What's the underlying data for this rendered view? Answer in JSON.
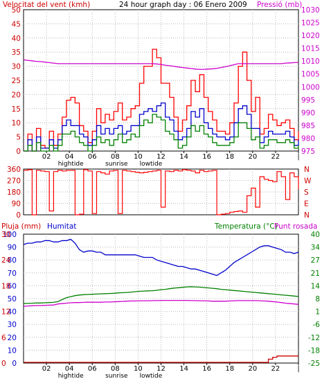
{
  "colors": {
    "wind": "#ff0000",
    "pressure": "#cc00cc",
    "humidity": "#0000cc",
    "temperature": "#008000",
    "dewpoint": "#cc00cc",
    "rain": "#cc0000",
    "direction": "#ff0000",
    "gridline": "#b8b8b8",
    "frame": "#000000"
  },
  "chart_data": [
    {
      "type": "line",
      "id": "wind-pressure",
      "title": "24 hour graph day : 06 Enero 2009",
      "ylabel": "Velocitat del vent (kmh)",
      "y2label": "Pressió (mb)",
      "ylim": [
        0,
        50
      ],
      "y2lim": [
        975,
        1030
      ],
      "yticks": [
        "0",
        "5",
        "10",
        "15",
        "20",
        "25",
        "30",
        "35",
        "40",
        "45",
        "50"
      ],
      "y2ticks": [
        "975",
        "980",
        "985",
        "990",
        "995",
        "1000",
        "1005",
        "1010",
        "1015",
        "1020",
        "1025",
        "1030"
      ],
      "xticks": [
        "02",
        "04",
        "06",
        "08",
        "10",
        "12",
        "14",
        "16",
        "18",
        "20",
        "22",
        "|"
      ],
      "xannotations": [
        {
          "text": "hightide",
          "hour": 4
        },
        {
          "text": "sunrise",
          "hour": 8
        },
        {
          "text": "lowtide",
          "hour": 11
        }
      ],
      "grid": true,
      "series": [
        {
          "name": "gust",
          "values": [
            0,
            6,
            0,
            8,
            2,
            1,
            7,
            2,
            6,
            12,
            18,
            19,
            17,
            9,
            7,
            3,
            7,
            15,
            10,
            13,
            11,
            14,
            17,
            11,
            12,
            15,
            16,
            24,
            30,
            30,
            36,
            33,
            24,
            24,
            19,
            12,
            7,
            11,
            16,
            25,
            21,
            27,
            19,
            14,
            11,
            7,
            7,
            6,
            10,
            17,
            30,
            35,
            25,
            14,
            19,
            6,
            8,
            13,
            11,
            9,
            10,
            11,
            8,
            4,
            7
          ]
        },
        {
          "name": "average",
          "values": [
            0,
            4,
            0,
            5,
            1,
            1,
            4,
            1,
            4,
            9,
            11,
            9,
            9,
            6,
            5,
            2,
            4,
            9,
            6,
            8,
            6,
            8,
            9,
            6,
            7,
            9,
            9,
            13,
            14,
            15,
            14,
            16,
            17,
            12,
            11,
            7,
            4,
            5,
            8,
            14,
            12,
            15,
            10,
            8,
            6,
            5,
            5,
            4,
            5,
            10,
            15,
            16,
            13,
            8,
            8,
            3,
            5,
            7,
            6,
            6,
            6,
            7,
            5,
            2,
            4
          ]
        },
        {
          "name": "minimum",
          "values": [
            0,
            2,
            0,
            3,
            0,
            0,
            2,
            0,
            2,
            6,
            6,
            7,
            5,
            3,
            2,
            0,
            2,
            5,
            3,
            4,
            2,
            4,
            6,
            3,
            4,
            6,
            5,
            9,
            11,
            10,
            13,
            12,
            11,
            7,
            6,
            4,
            1,
            2,
            5,
            9,
            7,
            9,
            6,
            5,
            3,
            2,
            2,
            2,
            3,
            5,
            10,
            10,
            8,
            4,
            5,
            1,
            2,
            4,
            4,
            3,
            3,
            4,
            3,
            1,
            2
          ]
        },
        {
          "name": "pressure",
          "axis": "right",
          "values": [
            1010.5,
            1010.3,
            1010.1,
            1009.9,
            1009.8,
            1009.6,
            1009.4,
            1009.2,
            1009.0,
            1009.0,
            1009.0,
            1009.0,
            1009.0,
            1009.0,
            1009.0,
            1009.0,
            1009.0,
            1009.0,
            1009.0,
            1009.0,
            1009.0,
            1009.0,
            1009.0,
            1009.0,
            1009.0,
            1009.0,
            1009.0,
            1009.0,
            1009.0,
            1009.0,
            1009.0,
            1008.9,
            1008.7,
            1008.4,
            1008.2,
            1008.0,
            1007.7,
            1007.5,
            1007.3,
            1007.1,
            1006.9,
            1006.8,
            1006.8,
            1006.9,
            1007.0,
            1007.2,
            1007.5,
            1007.8,
            1008.2,
            1008.6,
            1009.0,
            1009.0,
            1009.0,
            1009.0,
            1009.0,
            1009.0,
            1009.0,
            1009.0,
            1009.0,
            1009.0,
            1009.0,
            1009.2,
            1009.3,
            1009.4,
            1009.5
          ]
        }
      ]
    },
    {
      "type": "line",
      "id": "direction",
      "ylim": [
        0,
        360
      ],
      "yticks": [
        "0",
        "90",
        "180",
        "270",
        "360"
      ],
      "y2ticks": [
        "N",
        "W",
        "S",
        "E",
        "N"
      ],
      "grid": true,
      "series": [
        {
          "name": "direction",
          "values": [
            350,
            355,
            0,
            350,
            345,
            340,
            30,
            340,
            350,
            345,
            350,
            350,
            0,
            5,
            355,
            345,
            10,
            340,
            330,
            320,
            345,
            350,
            10,
            350,
            345,
            340,
            335,
            330,
            335,
            340,
            345,
            350,
            60,
            345,
            340,
            350,
            345,
            355,
            350,
            345,
            330,
            350,
            340,
            345,
            350,
            0,
            5,
            10,
            20,
            25,
            30,
            20,
            150,
            210,
            60,
            300,
            280,
            270,
            260,
            340,
            300,
            120,
            330,
            300,
            200
          ]
        }
      ]
    },
    {
      "type": "line",
      "id": "rain-humidity-temperature",
      "ylabel": "Pluja (mm)",
      "ylabel2": "Humitat",
      "y2label": "Temperatura (°C)",
      "y2label2": "Punt rosada",
      "ylim": [
        0,
        100
      ],
      "y2lim": [
        -25,
        40
      ],
      "yticks": [
        "0",
        "10",
        "20",
        "30",
        "40",
        "50",
        "60",
        "70",
        "80",
        "90",
        "100"
      ],
      "yticks_rain": [
        "0",
        "6",
        "12",
        "18",
        "24",
        "30"
      ],
      "y2ticks": [
        "-25",
        "-18",
        "-12",
        "-6",
        "1",
        "8",
        "14",
        "21",
        "27",
        "34",
        "40"
      ],
      "xticks": [
        "02",
        "04",
        "06",
        "08",
        "10",
        "12",
        "14",
        "16",
        "18",
        "20",
        "22",
        "|"
      ],
      "xannotations": [
        {
          "text": "hightide",
          "hour": 4
        },
        {
          "text": "sunrise",
          "hour": 8
        },
        {
          "text": "lowtide",
          "hour": 11
        }
      ],
      "grid": true,
      "series": [
        {
          "name": "humidity",
          "values": [
            92,
            93,
            93,
            94,
            94,
            95,
            95,
            94,
            94,
            95,
            95,
            96,
            93,
            88,
            86,
            87,
            87,
            86,
            86,
            84,
            84,
            84,
            84,
            84,
            84,
            84,
            84,
            83,
            82,
            82,
            82,
            80,
            79,
            78,
            77,
            76,
            75,
            75,
            74,
            73,
            73,
            72,
            71,
            70,
            69,
            68,
            70,
            72,
            75,
            78,
            80,
            82,
            84,
            86,
            88,
            90,
            91,
            91,
            90,
            89,
            88,
            86,
            86,
            85,
            86
          ]
        },
        {
          "name": "temperature",
          "axis": "right",
          "values": [
            5.0,
            5.1,
            5.2,
            5.3,
            5.3,
            5.4,
            5.5,
            5.6,
            6.0,
            7.0,
            8.0,
            8.5,
            9.0,
            9.3,
            9.5,
            9.6,
            9.7,
            9.8,
            9.9,
            10.0,
            10.1,
            10.2,
            10.4,
            10.5,
            10.6,
            10.8,
            11.0,
            11.2,
            11.3,
            11.4,
            11.5,
            11.7,
            12.0,
            12.2,
            12.5,
            12.8,
            13.0,
            13.2,
            13.4,
            13.5,
            13.4,
            13.3,
            13.1,
            12.9,
            12.7,
            12.5,
            12.2,
            12.0,
            11.8,
            11.6,
            11.4,
            11.2,
            11.0,
            10.8,
            10.6,
            10.4,
            10.2,
            10.0,
            9.8,
            9.6,
            9.4,
            9.2,
            9.0,
            8.8,
            8.6
          ]
        },
        {
          "name": "dewpoint",
          "axis": "right",
          "values": [
            3.6,
            3.8,
            3.9,
            4.0,
            4.0,
            4.1,
            4.2,
            4.3,
            4.8,
            5.0,
            5.2,
            5.4,
            5.5,
            5.5,
            5.6,
            5.7,
            5.7,
            5.7,
            5.7,
            5.8,
            5.8,
            5.9,
            6.0,
            6.1,
            6.2,
            6.3,
            6.3,
            6.4,
            6.4,
            6.4,
            6.5,
            6.5,
            6.6,
            6.6,
            6.6,
            6.6,
            6.6,
            6.6,
            6.6,
            6.5,
            6.5,
            6.4,
            6.4,
            6.3,
            6.2,
            6.2,
            6.2,
            6.2,
            6.3,
            6.4,
            6.5,
            6.5,
            6.5,
            6.5,
            6.5,
            6.4,
            6.3,
            6.2,
            6.0,
            5.8,
            5.5,
            5.2,
            5.0,
            4.8,
            4.6
          ]
        },
        {
          "name": "rain",
          "axis": "rain",
          "values": [
            0,
            0,
            0,
            0,
            0,
            0,
            0,
            0,
            0,
            0,
            0,
            0,
            0,
            0,
            0,
            0,
            0,
            0,
            0,
            0,
            0,
            0,
            0,
            0,
            0,
            0,
            0,
            0,
            0,
            0,
            0,
            0,
            0,
            0,
            0,
            0,
            0,
            0,
            0,
            0,
            0,
            0,
            0,
            0,
            0,
            0,
            0,
            0,
            0,
            0,
            0,
            0,
            0,
            0,
            0,
            0,
            0,
            0.5,
            0.8,
            1.0,
            1.0,
            1.0,
            1.0,
            1.0,
            1.0
          ]
        }
      ]
    }
  ]
}
